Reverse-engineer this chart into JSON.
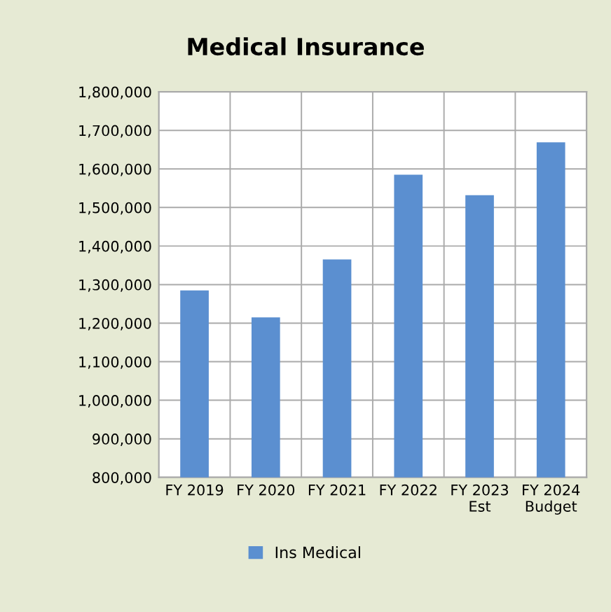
{
  "chart_data": {
    "type": "bar",
    "title": "Medical Insurance",
    "categories": [
      "FY 2019",
      "FY 2020",
      "FY 2021",
      "FY 2022",
      "FY 2023\nEst",
      "FY 2024\nBudget"
    ],
    "series": [
      {
        "name": "Ins Medical",
        "color": "#5b8fd0",
        "values": [
          1285000,
          1215000,
          1365000,
          1585000,
          1532000,
          1669000
        ]
      }
    ],
    "ylim": [
      800000,
      1800000
    ],
    "yticks": [
      {
        "value": 800000,
        "label": "800,000"
      },
      {
        "value": 900000,
        "label": "900,000"
      },
      {
        "value": 1000000,
        "label": "1,000,000"
      },
      {
        "value": 1100000,
        "label": "1,100,000"
      },
      {
        "value": 1200000,
        "label": "1,200,000"
      },
      {
        "value": 1300000,
        "label": "1,300,000"
      },
      {
        "value": 1400000,
        "label": "1,400,000"
      },
      {
        "value": 1500000,
        "label": "1,500,000"
      },
      {
        "value": 1600000,
        "label": "1,600,000"
      },
      {
        "value": 1700000,
        "label": "1,700,000"
      },
      {
        "value": 1800000,
        "label": "1,800,000"
      }
    ],
    "grid": true,
    "legend": "bottom"
  }
}
